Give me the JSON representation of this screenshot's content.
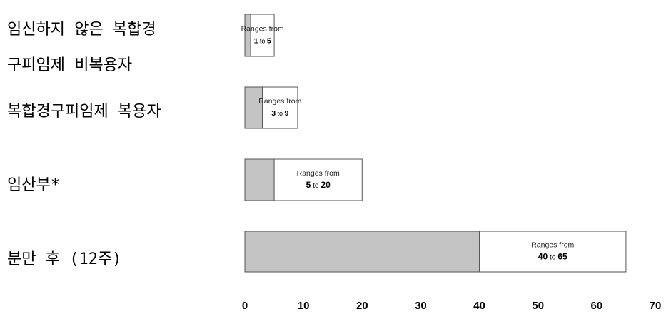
{
  "chart_data": {
    "type": "bar",
    "orientation": "horizontal",
    "stacked": true,
    "title": "",
    "xlabel": "",
    "ylabel": "",
    "xlim": [
      0,
      70
    ],
    "x_ticks": [
      0,
      10,
      20,
      30,
      40,
      50,
      60,
      70
    ],
    "grid": false,
    "legend": "none",
    "categories": [
      {
        "label_lines": [
          "임신하지 않은 복합경",
          "구피임제 비복용자"
        ],
        "range_low": 1,
        "range_high": 5,
        "range_prefix": "Ranges from",
        "range_joiner": "to"
      },
      {
        "label_lines": [
          "복합경구피임제 복용자"
        ],
        "range_low": 3,
        "range_high": 9,
        "range_prefix": "Ranges from",
        "range_joiner": "to"
      },
      {
        "label_lines": [
          "임산부*"
        ],
        "range_low": 5,
        "range_high": 20,
        "range_prefix": "Ranges from",
        "range_joiner": "to"
      },
      {
        "label_lines": [
          "분만 후 (12주)"
        ],
        "range_low": 40,
        "range_high": 65,
        "range_prefix": "Ranges from",
        "range_joiner": "to"
      }
    ],
    "colors": {
      "low_segment": "#c4c4c4",
      "range_segment": "#ffffff",
      "outline": "#555555",
      "axis": "#000000"
    }
  }
}
